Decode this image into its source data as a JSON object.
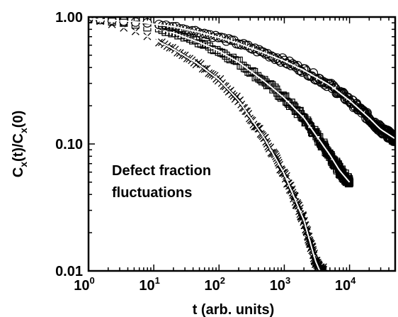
{
  "chart_data": {
    "type": "scatter",
    "title": "",
    "xlabel": "t (arb. units)",
    "ylabel": {
      "base": "C",
      "sub": "x",
      "mid": "(t)/C",
      "sub2": "x",
      "end": "(0)"
    },
    "xscale": "log",
    "yscale": "log",
    "xlim": [
      1,
      50000
    ],
    "ylim": [
      0.01,
      1.0
    ],
    "x_ticks": [
      {
        "base": "10",
        "exp": "0",
        "value": 1
      },
      {
        "base": "10",
        "exp": "1",
        "value": 10
      },
      {
        "base": "10",
        "exp": "2",
        "value": 100
      },
      {
        "base": "10",
        "exp": "3",
        "value": 1000
      },
      {
        "base": "10",
        "exp": "4",
        "value": 10000
      }
    ],
    "y_ticks": [
      {
        "label": "1.00",
        "value": 1.0
      },
      {
        "label": "0.10",
        "value": 0.1
      },
      {
        "label": "0.01",
        "value": 0.01
      }
    ],
    "annotation": [
      "Defect fraction",
      "fluctuations"
    ],
    "grid": false,
    "series": [
      {
        "marker": "cross",
        "fit_color": "#ffffff",
        "x": [
          1,
          2,
          5,
          10,
          20,
          50,
          100,
          200,
          500,
          1000,
          2000,
          3000,
          3500,
          4000
        ],
        "y": [
          0.97,
          0.9,
          0.78,
          0.67,
          0.56,
          0.42,
          0.32,
          0.22,
          0.11,
          0.058,
          0.025,
          0.012,
          0.01,
          0.01
        ]
      },
      {
        "marker": "square",
        "fit_color": "#ffffff",
        "x": [
          1,
          5,
          10,
          20,
          50,
          100,
          200,
          500,
          1000,
          2000,
          5000,
          7000,
          10000
        ],
        "y": [
          0.97,
          0.88,
          0.82,
          0.75,
          0.63,
          0.54,
          0.44,
          0.31,
          0.23,
          0.16,
          0.082,
          0.062,
          0.05
        ]
      },
      {
        "marker": "circle",
        "fit_color": "#ffffff",
        "x": [
          1,
          5,
          10,
          20,
          50,
          100,
          200,
          500,
          1000,
          2000,
          5000,
          10000,
          20000,
          30000,
          50000
        ],
        "y": [
          0.97,
          0.92,
          0.88,
          0.84,
          0.76,
          0.69,
          0.62,
          0.52,
          0.45,
          0.38,
          0.29,
          0.22,
          0.16,
          0.13,
          0.11
        ]
      }
    ]
  }
}
